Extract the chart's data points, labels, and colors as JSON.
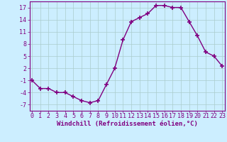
{
  "x": [
    0,
    1,
    2,
    3,
    4,
    5,
    6,
    7,
    8,
    9,
    10,
    11,
    12,
    13,
    14,
    15,
    16,
    17,
    18,
    19,
    20,
    21,
    22,
    23
  ],
  "y": [
    -1,
    -3,
    -3,
    -4,
    -4,
    -5,
    -6,
    -6.5,
    -6,
    -2,
    2,
    9,
    13.5,
    14.5,
    15.5,
    17.5,
    17.5,
    17,
    17,
    13.5,
    10,
    6,
    5,
    2.5
  ],
  "line_color": "#800080",
  "marker": "+",
  "marker_size": 4,
  "linewidth": 1.0,
  "background_color": "#cceeff",
  "grid_color": "#aacccc",
  "xlabel": "Windchill (Refroidissement éolien,°C)",
  "xlabel_fontsize": 6.5,
  "yticks": [
    -7,
    -4,
    -1,
    2,
    5,
    8,
    11,
    14,
    17
  ],
  "xticks": [
    0,
    1,
    2,
    3,
    4,
    5,
    6,
    7,
    8,
    9,
    10,
    11,
    12,
    13,
    14,
    15,
    16,
    17,
    18,
    19,
    20,
    21,
    22,
    23
  ],
  "xlim": [
    -0.3,
    23.3
  ],
  "ylim": [
    -8.5,
    18.5
  ],
  "tick_fontsize": 6.0,
  "tick_color": "#800080",
  "spine_color": "#800080",
  "label_color": "#800080"
}
